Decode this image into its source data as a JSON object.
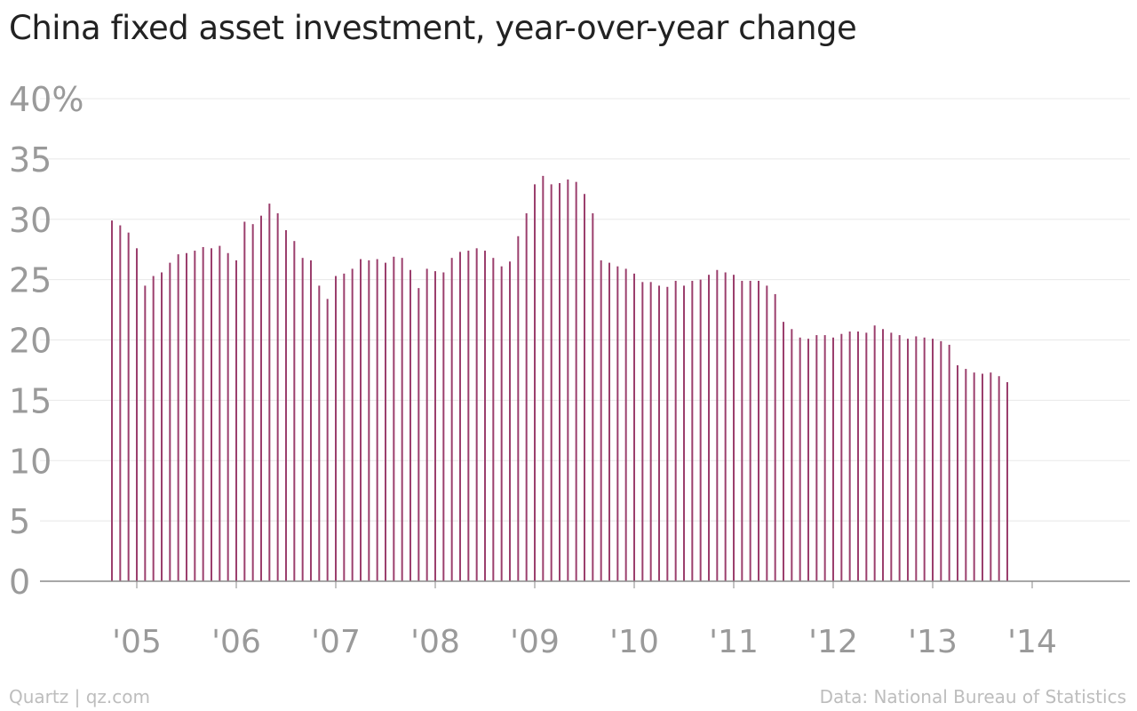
{
  "title": "China fixed asset investment, year-over-year change",
  "footer": {
    "credit": "Quartz | qz.com",
    "source": "Data: National Bureau of Statistics"
  },
  "colors": {
    "bars": "#9b3f6d",
    "grid": "#e8e8e8",
    "axis": "#8a8a8a",
    "tick_text": "#9a9a9a"
  },
  "chart_data": {
    "type": "bar",
    "title": "China fixed asset investment, year-over-year change",
    "xlabel": "",
    "ylabel": "",
    "ylim": [
      0,
      40
    ],
    "yticks": [
      "0",
      "5",
      "10",
      "15",
      "20",
      "25",
      "30",
      "35",
      "40%"
    ],
    "xticks": [
      "'05",
      "'06",
      "'07",
      "'08",
      "'09",
      "'10",
      "'11",
      "'12",
      "'13",
      "'14"
    ],
    "grid": true,
    "x_start": "2004-10",
    "series": [
      {
        "values": [
          29.9,
          29.5,
          28.9,
          27.6,
          24.5,
          25.3,
          25.6,
          26.4,
          27.1,
          27.2,
          27.4,
          27.7,
          27.6,
          27.8,
          27.2,
          26.6,
          29.8,
          29.6,
          30.3,
          31.3,
          30.5,
          29.1,
          28.2,
          26.8,
          26.6,
          24.5,
          23.4,
          25.3,
          25.5,
          25.9,
          26.7,
          26.6,
          26.7,
          26.4,
          26.9,
          26.8,
          25.8,
          24.3,
          25.9,
          25.7,
          25.6,
          26.8,
          27.3,
          27.4,
          27.6,
          27.4,
          26.8,
          26.1,
          26.5,
          28.6,
          30.5,
          32.9,
          33.6,
          32.9,
          33.0,
          33.3,
          33.1,
          32.1,
          30.5,
          26.6,
          26.4,
          26.1,
          25.9,
          25.5,
          24.8,
          24.8,
          24.5,
          24.4,
          24.9,
          24.5,
          24.9,
          25.0,
          25.4,
          25.8,
          25.6,
          25.4,
          24.9,
          24.9,
          24.9,
          24.5,
          23.8,
          21.5,
          20.9,
          20.2,
          20.1,
          20.4,
          20.4,
          20.2,
          20.5,
          20.7,
          20.7,
          20.6,
          21.2,
          20.9,
          20.6,
          20.4,
          20.1,
          20.3,
          20.2,
          20.1,
          19.9,
          19.6,
          17.9,
          17.6,
          17.3,
          17.2,
          17.3,
          17.0,
          16.5
        ]
      }
    ]
  }
}
